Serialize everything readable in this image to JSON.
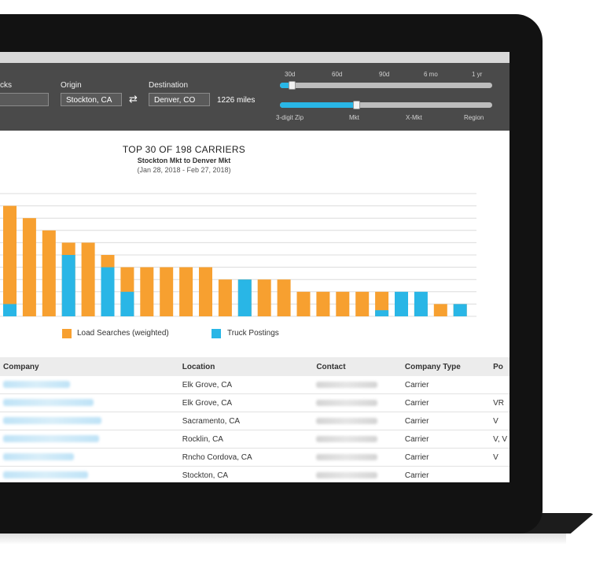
{
  "search": {
    "trucks_label": "cks",
    "origin_label": "Origin",
    "origin_value": "Stockton, CA",
    "destination_label": "Destination",
    "destination_value": "Denver, CO",
    "distance": "1226 miles",
    "swap_icon": "swap-arrows-icon"
  },
  "time_slider": {
    "labels": [
      "30d",
      "60d",
      "90d",
      "6 mo",
      "1 yr"
    ],
    "selected": "30d"
  },
  "area_slider": {
    "labels": [
      "3-digit Zip",
      "Mkt",
      "X-Mkt",
      "Region"
    ],
    "selected": "Mkt"
  },
  "chart_data": {
    "type": "bar",
    "title": "TOP 30 OF 198 CARRIERS",
    "subtitle": "Stockton Mkt to Denver Mkt",
    "date_range": "(Jan 28, 2018 - Feb 27, 2018)",
    "series": [
      {
        "name": "Load Searches (weighted)",
        "color": "#f7a030",
        "values": [
          9,
          8,
          7,
          6,
          6,
          5,
          4,
          4,
          4,
          4,
          4,
          3,
          3,
          3,
          3,
          2,
          2,
          2,
          2,
          2,
          1,
          1,
          1,
          1
        ]
      },
      {
        "name": "Truck Postings",
        "color": "#29b6e6",
        "values": [
          1,
          0,
          0,
          5,
          0,
          4,
          2,
          0,
          0,
          0,
          0,
          0,
          3,
          0,
          0,
          0,
          0,
          0,
          0,
          0.5,
          2,
          2,
          0,
          1
        ]
      }
    ]
  },
  "legend": {
    "load_searches": "Load Searches (weighted)",
    "truck_postings": "Truck Postings"
  },
  "table": {
    "headers": [
      "Company",
      "Location",
      "Contact",
      "Company Type",
      "Po"
    ],
    "rows": [
      {
        "location": "Elk Grove, CA",
        "type": "Carrier",
        "extra": ""
      },
      {
        "location": "Elk Grove, CA",
        "type": "Carrier",
        "extra": "VR"
      },
      {
        "location": "Sacramento, CA",
        "type": "Carrier",
        "extra": "V"
      },
      {
        "location": "Rocklin, CA",
        "type": "Carrier",
        "extra": "V, V"
      },
      {
        "location": "Rncho Cordova, CA",
        "type": "Carrier",
        "extra": "V"
      },
      {
        "location": "Stockton, CA",
        "type": "Carrier",
        "extra": ""
      }
    ]
  }
}
